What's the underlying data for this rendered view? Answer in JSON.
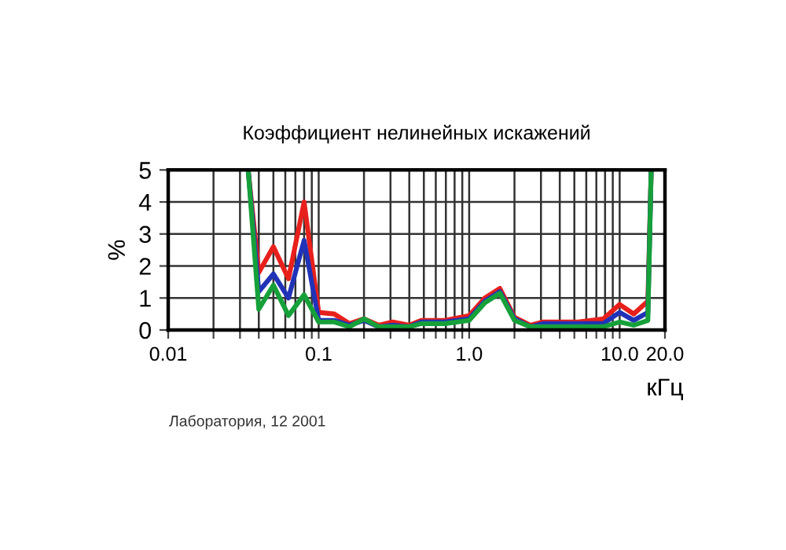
{
  "chart_data": {
    "type": "line",
    "title": "Коэффициент нелинейных искажений",
    "xlabel": "кГц",
    "ylabel": "%",
    "annotations": [
      "Лаборатория, 12 2001"
    ],
    "log": "x",
    "grid": true,
    "line_style": "solid",
    "marker": "none",
    "xlim": [
      0.01,
      20
    ],
    "ylim": [
      0,
      5
    ],
    "xticks": [
      0.01,
      {
        "value": 0.02,
        "label": null
      },
      {
        "value": 0.03,
        "label": null
      },
      {
        "value": 0.04,
        "label": null
      },
      {
        "value": 0.05,
        "label": null
      },
      {
        "value": 0.06,
        "label": null
      },
      {
        "value": 0.07,
        "label": null
      },
      {
        "value": 0.08,
        "label": null
      },
      {
        "value": 0.09,
        "label": null
      },
      0.1,
      {
        "value": 0.2,
        "label": null
      },
      {
        "value": 0.3,
        "label": null
      },
      {
        "value": 0.4,
        "label": null
      },
      {
        "value": 0.5,
        "label": null
      },
      {
        "value": 0.6,
        "label": null
      },
      {
        "value": 0.7,
        "label": null
      },
      {
        "value": 0.8,
        "label": null
      },
      {
        "value": 0.9,
        "label": null
      },
      {
        "value": 1,
        "label": "1.0"
      },
      {
        "value": 2,
        "label": null
      },
      {
        "value": 3,
        "label": null
      },
      {
        "value": 4,
        "label": null
      },
      {
        "value": 5,
        "label": null
      },
      {
        "value": 6,
        "label": null
      },
      {
        "value": 7,
        "label": null
      },
      {
        "value": 8,
        "label": null
      },
      {
        "value": 9,
        "label": null
      },
      {
        "value": 10,
        "label": "10.0"
      },
      {
        "value": 20,
        "label": "20.0"
      }
    ],
    "yticks": [
      0,
      1,
      2,
      3,
      4,
      5
    ],
    "x": [
      0.034,
      0.04,
      0.05,
      0.063,
      0.08,
      0.1,
      0.127,
      0.16,
      0.2,
      0.25,
      0.31,
      0.4,
      0.48,
      0.69,
      1.0,
      1.27,
      1.6,
      2.0,
      2.55,
      3.1,
      5.3,
      7.8,
      10,
      12.4,
      15.4,
      16.2
    ],
    "series": [
      {
        "color": "#e8201c",
        "values": [
          5,
          1.8,
          2.6,
          1.6,
          4.0,
          0.55,
          0.5,
          0.2,
          0.35,
          0.15,
          0.25,
          0.15,
          0.3,
          0.3,
          0.45,
          1.0,
          1.3,
          0.4,
          0.15,
          0.25,
          0.25,
          0.35,
          0.8,
          0.5,
          0.9,
          5
        ]
      },
      {
        "color": "#2033b8",
        "values": [
          5,
          1.2,
          1.75,
          1.0,
          2.8,
          0.3,
          0.3,
          0.15,
          0.3,
          0.1,
          0.15,
          0.1,
          0.25,
          0.25,
          0.35,
          0.9,
          1.2,
          0.35,
          0.1,
          0.2,
          0.2,
          0.2,
          0.55,
          0.3,
          0.55,
          5
        ]
      },
      {
        "color": "#16a03a",
        "values": [
          5,
          0.65,
          1.4,
          0.45,
          1.1,
          0.25,
          0.25,
          0.1,
          0.35,
          0.1,
          0.1,
          0.1,
          0.2,
          0.2,
          0.3,
          0.85,
          1.15,
          0.3,
          0.1,
          0.1,
          0.1,
          0.1,
          0.25,
          0.15,
          0.3,
          5
        ]
      }
    ]
  }
}
